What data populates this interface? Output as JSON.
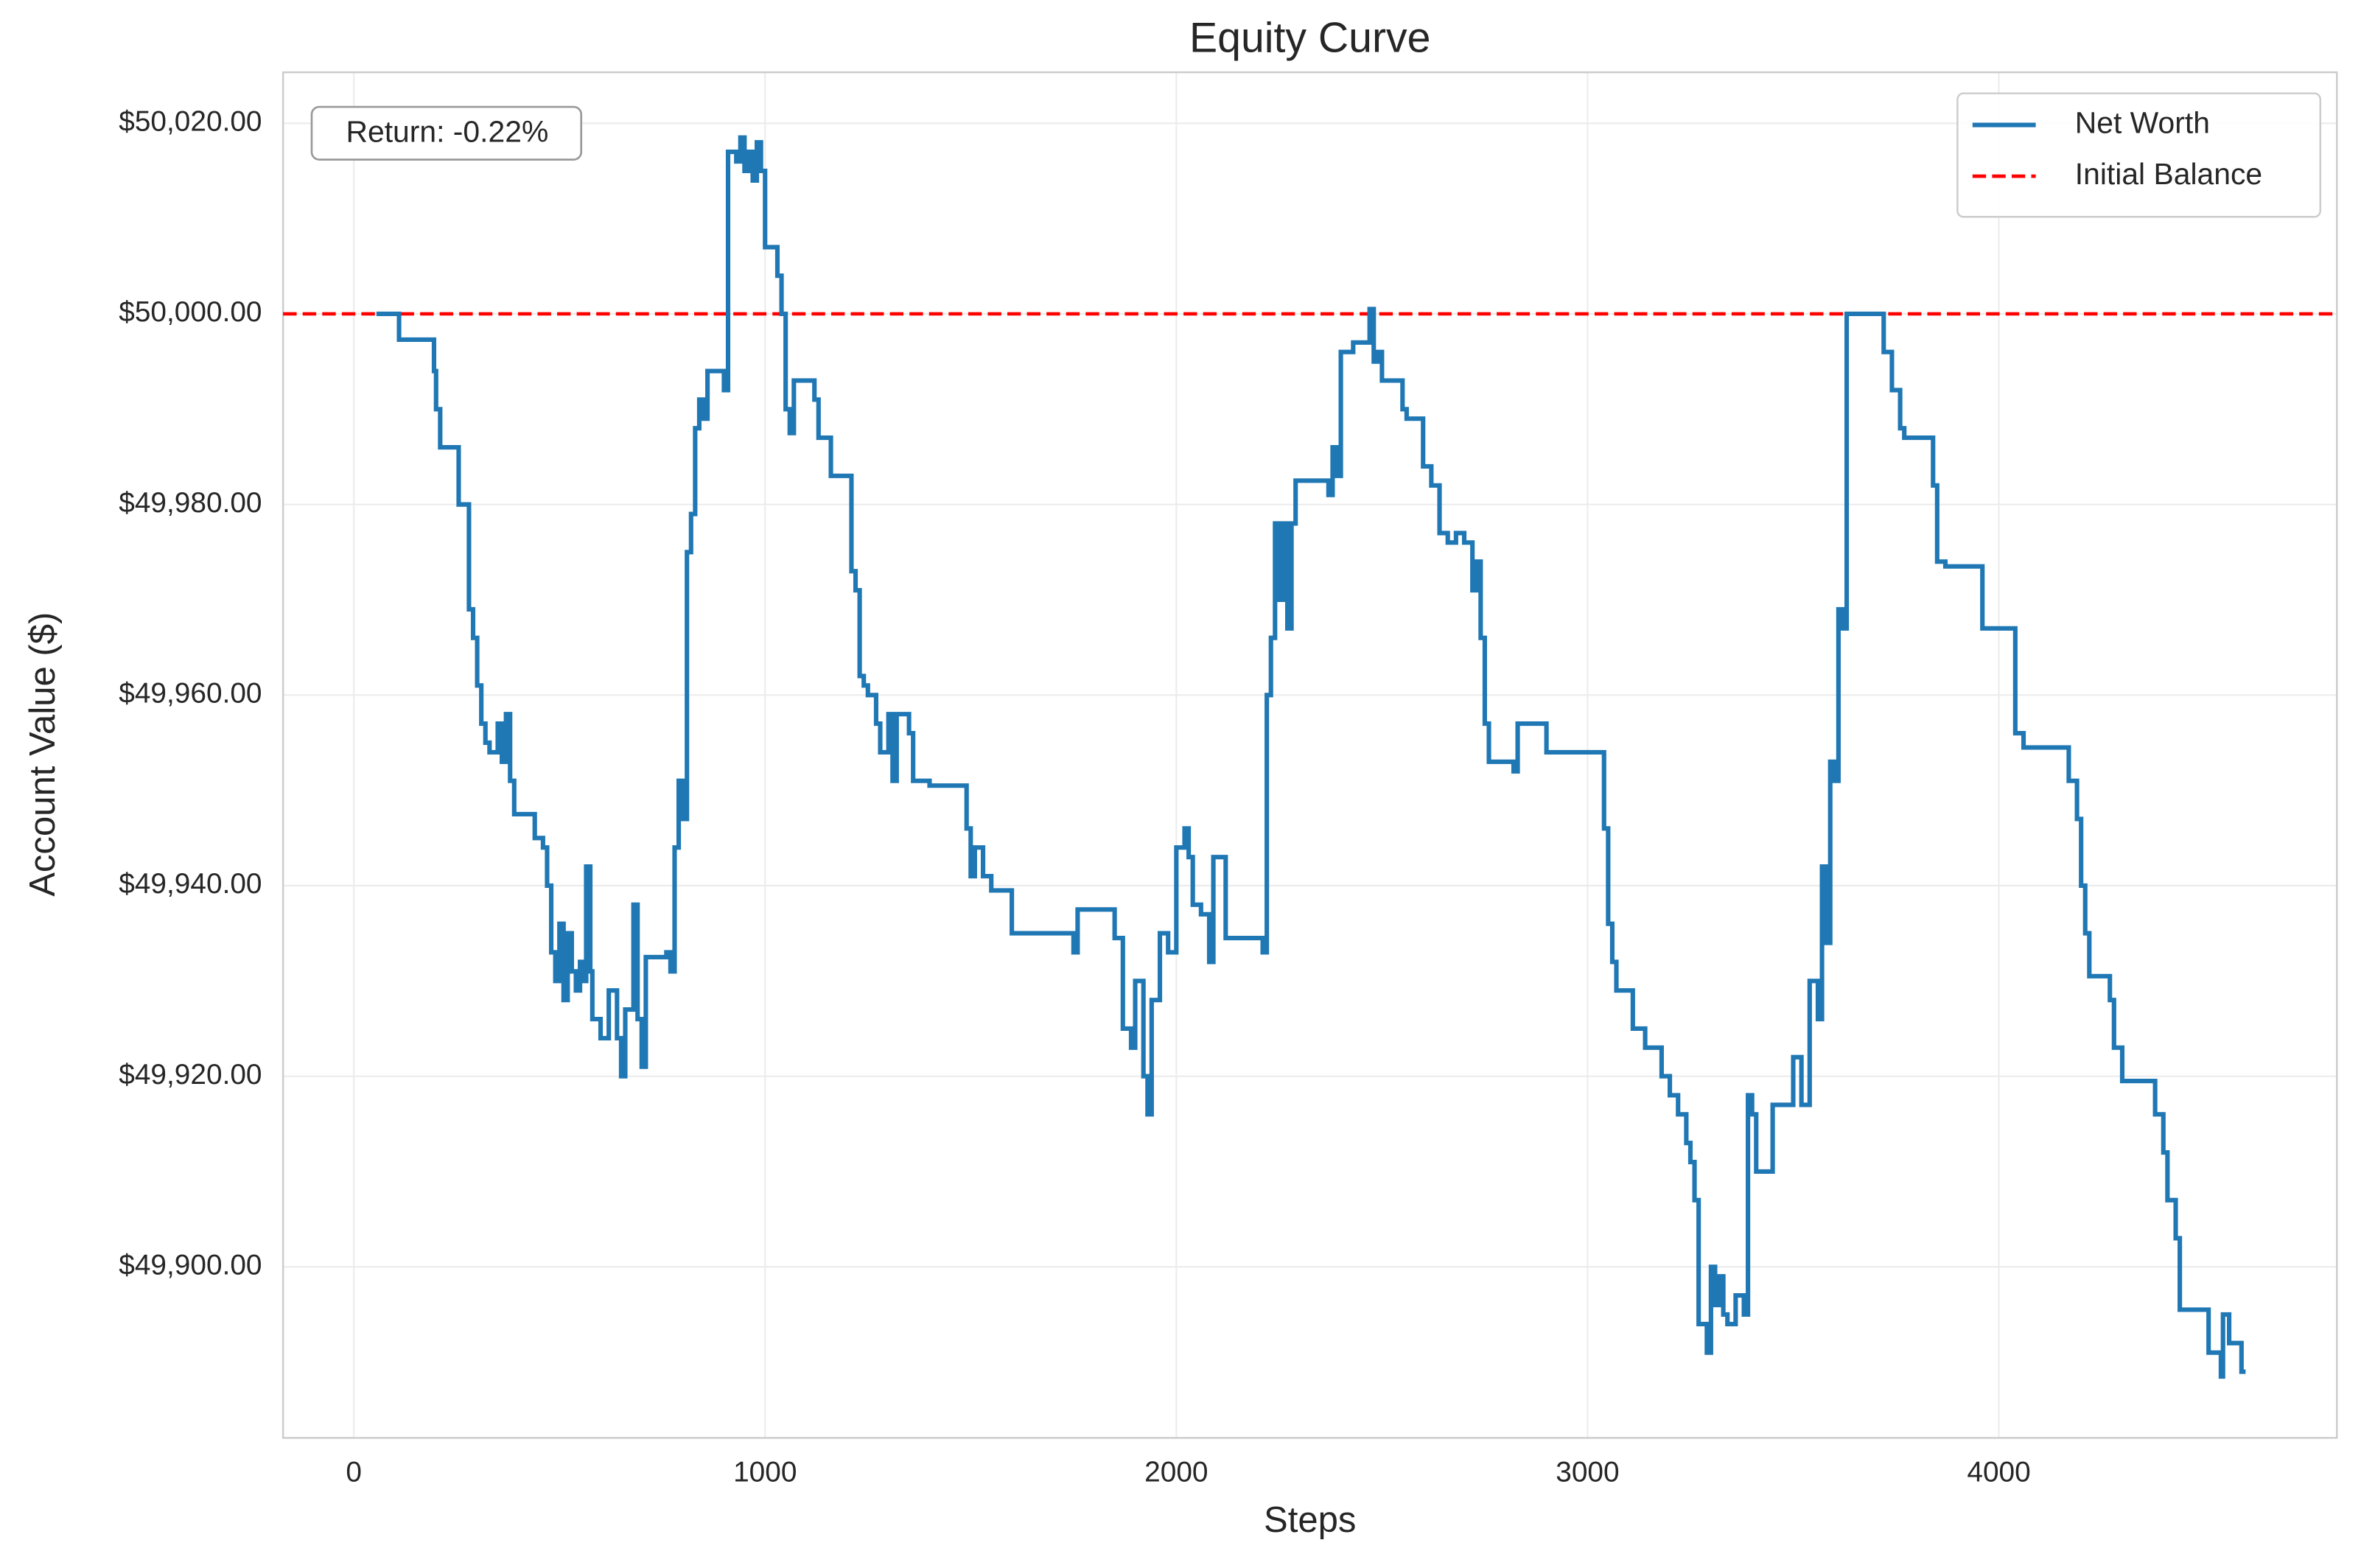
{
  "chart_data": {
    "type": "line",
    "drawstyle": "steps-post",
    "title": "Equity Curve",
    "xlabel": "Steps",
    "ylabel": "Account Value ($)",
    "annotation": "Return: -0.22%",
    "x": [
      55,
      110,
      195,
      200,
      210,
      255,
      280,
      290,
      300,
      310,
      320,
      330,
      350,
      360,
      370,
      380,
      390,
      440,
      460,
      470,
      480,
      490,
      500,
      510,
      520,
      530,
      540,
      550,
      560,
      565,
      575,
      580,
      600,
      620,
      640,
      650,
      660,
      680,
      690,
      700,
      710,
      760,
      770,
      780,
      790,
      800,
      810,
      820,
      830,
      840,
      850,
      860,
      900,
      910,
      930,
      940,
      950,
      960,
      970,
      980,
      990,
      1000,
      1030,
      1040,
      1050,
      1060,
      1070,
      1120,
      1130,
      1160,
      1210,
      1220,
      1230,
      1240,
      1250,
      1270,
      1280,
      1300,
      1310,
      1320,
      1350,
      1360,
      1400,
      1490,
      1500,
      1510,
      1530,
      1550,
      1600,
      1750,
      1760,
      1850,
      1870,
      1890,
      1900,
      1920,
      1930,
      1940,
      1960,
      1980,
      2000,
      2020,
      2030,
      2040,
      2060,
      2080,
      2090,
      2120,
      2210,
      2220,
      2230,
      2240,
      2250,
      2260,
      2270,
      2280,
      2290,
      2370,
      2380,
      2390,
      2400,
      2430,
      2470,
      2480,
      2490,
      2500,
      2550,
      2560,
      2600,
      2620,
      2640,
      2660,
      2680,
      2700,
      2720,
      2730,
      2740,
      2750,
      2760,
      2820,
      2830,
      2900,
      3040,
      3050,
      3060,
      3070,
      3110,
      3140,
      3180,
      3200,
      3220,
      3240,
      3250,
      3260,
      3270,
      3290,
      3300,
      3310,
      3320,
      3330,
      3340,
      3360,
      3380,
      3390,
      3400,
      3410,
      3450,
      3500,
      3520,
      3540,
      3560,
      3570,
      3580,
      3590,
      3600,
      3610,
      3620,
      3630,
      3720,
      3740,
      3760,
      3770,
      3840,
      3850,
      3870,
      3960,
      4040,
      4060,
      4170,
      4190,
      4200,
      4210,
      4220,
      4270,
      4280,
      4300,
      4380,
      4400,
      4410,
      4430,
      4440,
      4510,
      4540,
      4545,
      4560,
      4590,
      4600
    ],
    "series": [
      {
        "name": "Net Worth",
        "color": "#1f77b4",
        "values": [
          50000,
          49997.3,
          49994,
          49990,
          49986,
          49980,
          49969,
          49966,
          49961,
          49957,
          49955,
          49954,
          49957,
          49953,
          49958,
          49951,
          49947.5,
          49945,
          49944,
          49940,
          49933,
          49930,
          49936,
          49928,
          49935,
          49931,
          49929,
          49932,
          49930,
          49942,
          49931,
          49926,
          49924,
          49929,
          49924,
          49920,
          49927,
          49938,
          49926,
          49921,
          49932.5,
          49933,
          49931,
          49944,
          49951,
          49947,
          49975,
          49979,
          49988,
          49991,
          49989,
          49994,
          49992,
          50017,
          50016,
          50018.5,
          50015,
          50017,
          50014,
          50018,
          50015,
          50007,
          50004,
          50000,
          49990,
          49987.5,
          49993,
          49991,
          49987,
          49983,
          49973,
          49971,
          49962,
          49961,
          49960,
          49957,
          49954,
          49958,
          49951,
          49958,
          49956,
          49951,
          49950.5,
          49946,
          49941,
          49944,
          49941,
          49939.5,
          49935,
          49933,
          49937.5,
          49934.5,
          49925,
          49923,
          49930,
          49920,
          49916,
          49928,
          49935,
          49933,
          49944,
          49946,
          49943,
          49938,
          49937,
          49932,
          49943,
          49934.5,
          49933,
          49960,
          49966,
          49978,
          49970,
          49978,
          49967,
          49978,
          49982.5,
          49981,
          49986,
          49983,
          49996,
          49997,
          50000.5,
          49995,
          49996,
          49993,
          49990,
          49989,
          49984,
          49982,
          49977,
          49976,
          49977,
          49976,
          49971,
          49974,
          49966,
          49957,
          49953,
          49952,
          49957,
          49954,
          49946,
          49936,
          49932,
          49929,
          49925,
          49923,
          49920,
          49918,
          49916,
          49913,
          49911,
          49907,
          49894,
          49891,
          49900,
          49896,
          49899,
          49895,
          49894,
          49897,
          49895,
          49918,
          49916,
          49910,
          49917,
          49922,
          49917,
          49930,
          49926,
          49942,
          49934,
          49953,
          49951,
          49969,
          49967,
          50000,
          49996,
          49992,
          49988,
          49987,
          49982,
          49974,
          49973.5,
          49967,
          49956,
          49954.5,
          49951,
          49947,
          49940,
          49935,
          49930.5,
          49928,
          49923,
          49919.5,
          49916,
          49912,
          49907,
          49903,
          49895.5,
          49891,
          49888.5,
          49895,
          49892,
          49889,
          49889
        ]
      }
    ],
    "reference_line": {
      "name": "Initial Balance",
      "value": 50000,
      "color": "#ff0000"
    },
    "xlim": [
      -172,
      4822
    ],
    "xticks": [
      0,
      1000,
      2000,
      3000,
      4000
    ],
    "ylim": [
      49882.05,
      50025.35
    ],
    "yticks": [
      {
        "value": 49900,
        "label": "$49,900.00"
      },
      {
        "value": 49920,
        "label": "$49,920.00"
      },
      {
        "value": 49940,
        "label": "$49,940.00"
      },
      {
        "value": 49960,
        "label": "$49,960.00"
      },
      {
        "value": 49980,
        "label": "$49,980.00"
      },
      {
        "value": 50000,
        "label": "$50,000.00"
      },
      {
        "value": 50020,
        "label": "$50,020.00"
      }
    ],
    "grid": true,
    "legend": "upper right"
  }
}
